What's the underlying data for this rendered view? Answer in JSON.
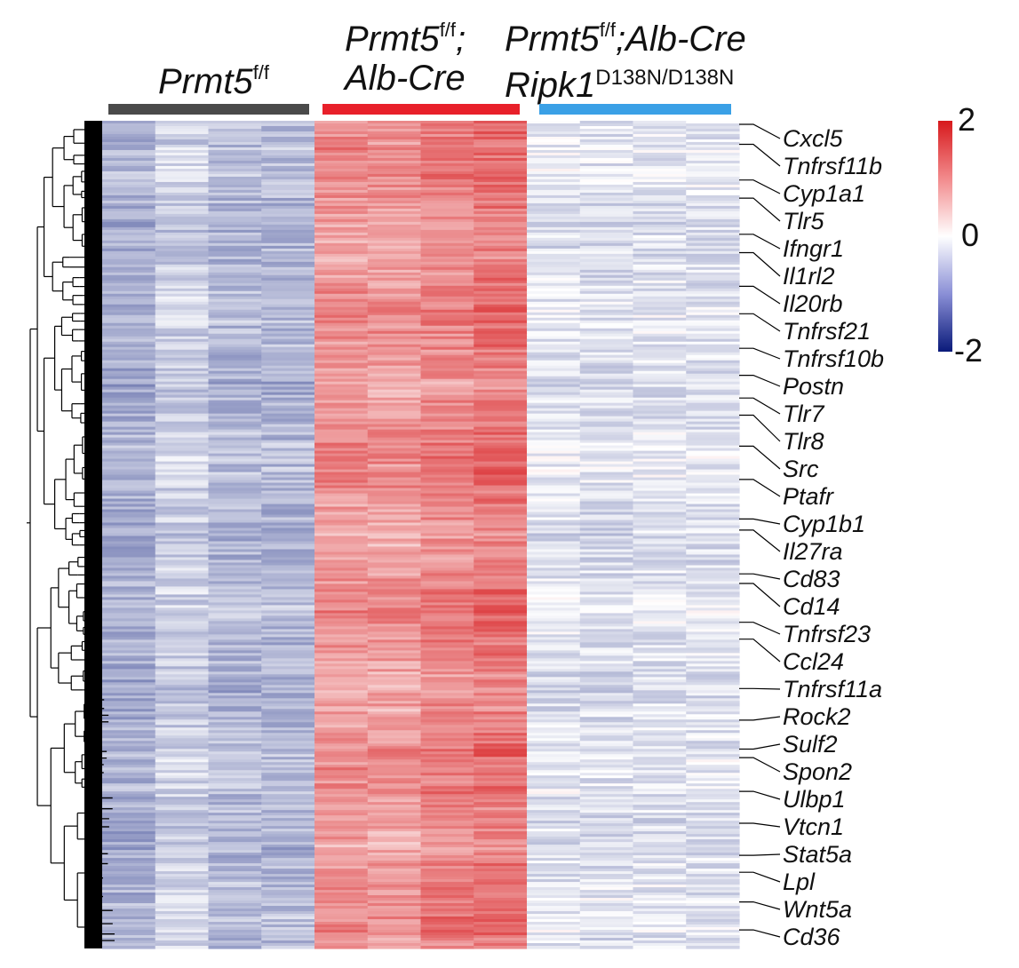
{
  "groups": [
    {
      "name_parts": [
        "Prmt5",
        "f/f",
        "",
        ""
      ],
      "color": "#4a4a4a"
    },
    {
      "name_parts": [
        "Prmt5",
        "f/f",
        ";",
        "Alb-Cre"
      ],
      "color": "#e8202a"
    },
    {
      "name_parts": [
        "Prmt5",
        "f/f",
        ";Alb-Cre",
        "Ripk1",
        "D138N/D138N"
      ],
      "color": "#3aa0e6"
    }
  ],
  "colorscale": {
    "max_label": "2",
    "mid_label": "0",
    "min_label": "-2",
    "colors": {
      "high": "#d7191c",
      "mid": "#ffffff",
      "low": "#0a1a7a"
    }
  },
  "chart_data": {
    "type": "heatmap",
    "columns": 12,
    "column_groups": [
      4,
      4,
      4
    ],
    "value_range": [
      -2,
      2
    ],
    "group_means": [
      -0.55,
      0.85,
      -0.3
    ],
    "labeled_genes": [
      "Cxcl5",
      "Tnfrsf11b",
      "Cyp1a1",
      "Tlr5",
      "Ifngr1",
      "Il1rl2",
      "Il20rb",
      "Tnfrsf21",
      "Tnfrsf10b",
      "Postn",
      "Tlr7",
      "Tlr8",
      "Src",
      "Ptafr",
      "Cyp1b1",
      "Il27ra",
      "Cd83",
      "Cd14",
      "Tnfrsf23",
      "Ccl24",
      "Tnfrsf11a",
      "Rock2",
      "Sulf2",
      "Spon2",
      "Ulbp1",
      "Vtcn1",
      "Stat5a",
      "Lpl",
      "Wnt5a",
      "Cd36"
    ]
  }
}
